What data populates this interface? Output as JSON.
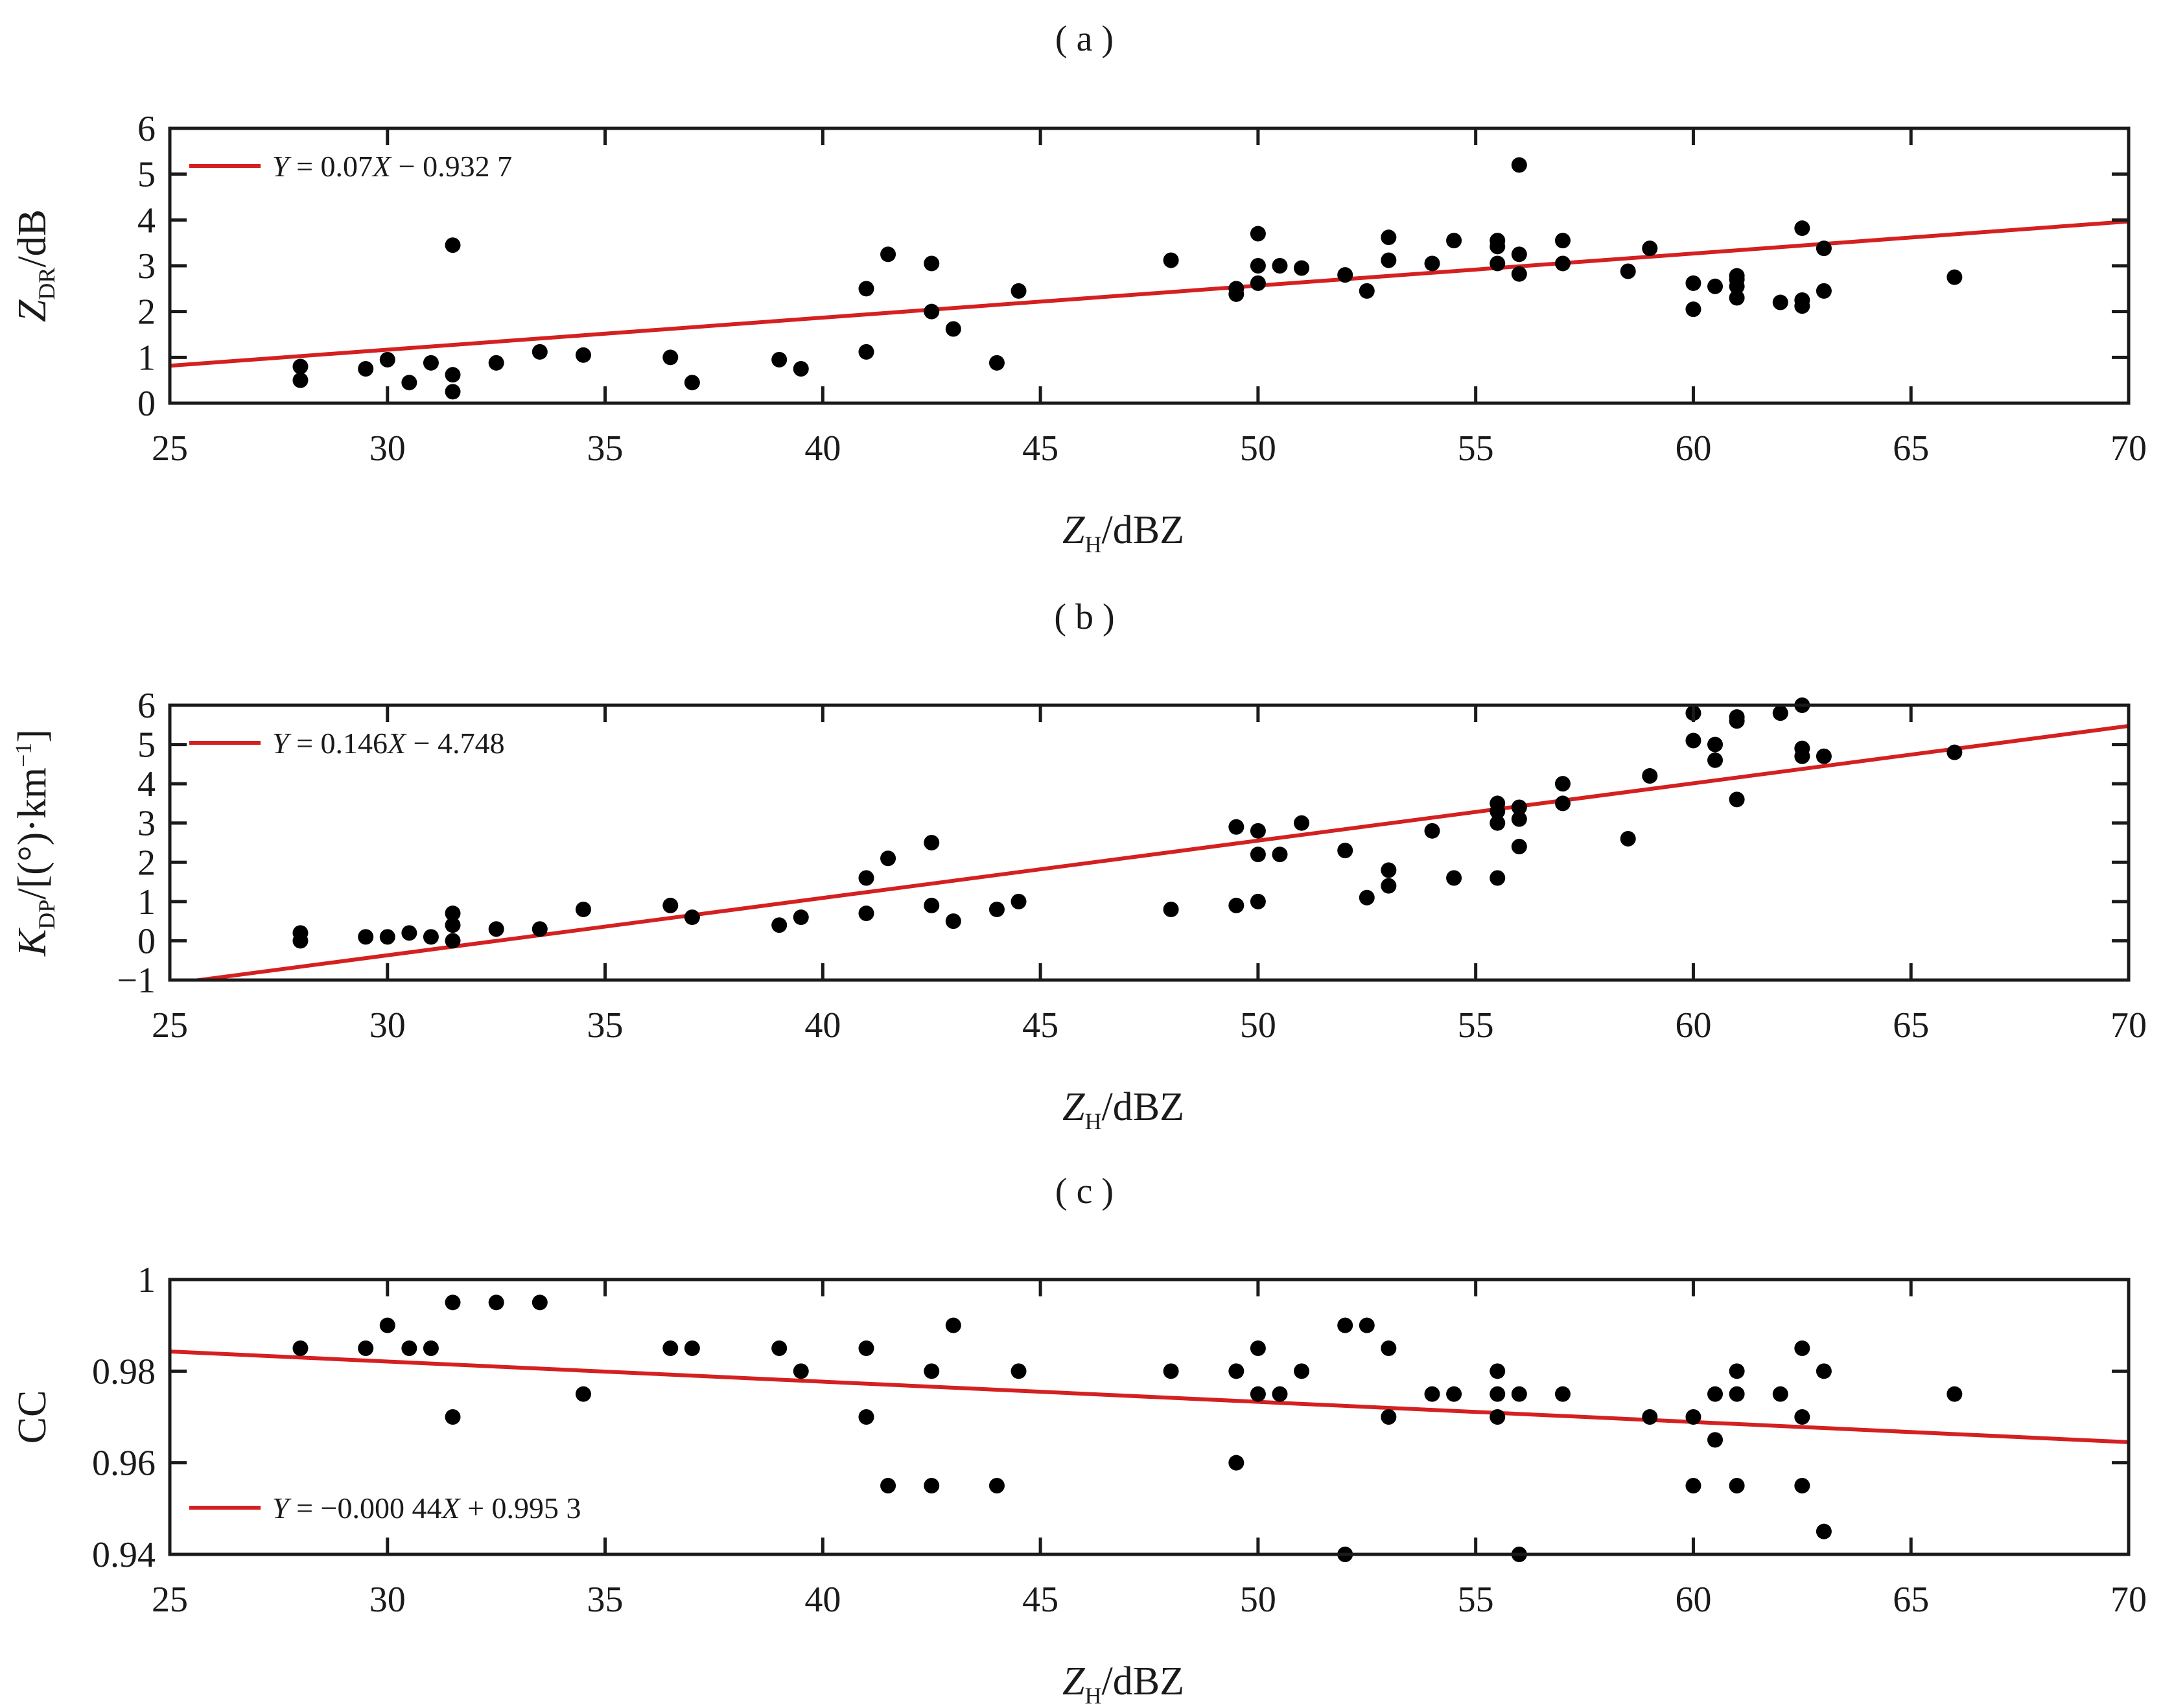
{
  "chart_data": [
    {
      "type": "scatter",
      "panel_label": "( a )",
      "xlabel": {
        "base": "Z",
        "sub": "H",
        "rest": "/dBZ"
      },
      "ylabel": {
        "base": "Z",
        "sub": "DR",
        "rest": "/dB"
      },
      "xlim": [
        25,
        70
      ],
      "ylim": [
        0,
        6
      ],
      "xticks": [
        25,
        30,
        35,
        40,
        45,
        50,
        55,
        60,
        65,
        70
      ],
      "yticks": [
        0,
        1,
        2,
        3,
        4,
        5,
        6
      ],
      "ytick_labels": [
        "0",
        "1",
        "2",
        "3",
        "4",
        "5",
        "6"
      ],
      "legend_position": "top-left",
      "fit": {
        "slope": 0.07,
        "intercept": -0.9327,
        "label_parts": [
          {
            "t": "Y",
            "i": true
          },
          {
            "t": " = 0.07"
          },
          {
            "t": "X",
            "i": true
          },
          {
            "t": " − 0.932 7"
          }
        ]
      },
      "points": [
        [
          28,
          0.5
        ],
        [
          28,
          0.8
        ],
        [
          29.5,
          0.75
        ],
        [
          30,
          0.95
        ],
        [
          30.5,
          0.45
        ],
        [
          31,
          0.88
        ],
        [
          31.5,
          0.25
        ],
        [
          31.5,
          0.62
        ],
        [
          31.5,
          3.45
        ],
        [
          32.5,
          0.88
        ],
        [
          33.5,
          1.12
        ],
        [
          34.5,
          1.05
        ],
        [
          36.5,
          1.0
        ],
        [
          37,
          0.45
        ],
        [
          39,
          0.95
        ],
        [
          39.5,
          0.75
        ],
        [
          41,
          1.12
        ],
        [
          41,
          2.5
        ],
        [
          41.5,
          3.25
        ],
        [
          42.5,
          2.0
        ],
        [
          42.5,
          3.05
        ],
        [
          43,
          1.62
        ],
        [
          44,
          0.88
        ],
        [
          44.5,
          2.45
        ],
        [
          48,
          3.12
        ],
        [
          49.5,
          2.38
        ],
        [
          49.5,
          2.5
        ],
        [
          50,
          2.62
        ],
        [
          50,
          3.0
        ],
        [
          50,
          3.7
        ],
        [
          50.5,
          3.0
        ],
        [
          51,
          2.95
        ],
        [
          52,
          2.8
        ],
        [
          52.5,
          2.45
        ],
        [
          53,
          3.12
        ],
        [
          53,
          3.62
        ],
        [
          54,
          3.05
        ],
        [
          54.5,
          3.55
        ],
        [
          55.5,
          3.05
        ],
        [
          55.5,
          3.42
        ],
        [
          55.5,
          3.55
        ],
        [
          56,
          2.82
        ],
        [
          56,
          3.25
        ],
        [
          56,
          5.2
        ],
        [
          57,
          3.05
        ],
        [
          57,
          3.55
        ],
        [
          58.5,
          2.88
        ],
        [
          59,
          3.38
        ],
        [
          60,
          2.05
        ],
        [
          60,
          2.62
        ],
        [
          60.5,
          2.55
        ],
        [
          61,
          2.3
        ],
        [
          61,
          2.55
        ],
        [
          61,
          2.7
        ],
        [
          61,
          2.78
        ],
        [
          62,
          2.2
        ],
        [
          62.5,
          2.12
        ],
        [
          62.5,
          2.25
        ],
        [
          62.5,
          3.82
        ],
        [
          63,
          2.45
        ],
        [
          63,
          3.38
        ],
        [
          66,
          2.75
        ]
      ]
    },
    {
      "type": "scatter",
      "panel_label": "( b )",
      "xlabel": {
        "base": "Z",
        "sub": "H",
        "rest": "/dBZ"
      },
      "ylabel": {
        "base": "K",
        "sub": "DP",
        "rest": "/[(°)·km",
        "sup": "−1",
        "tail": "]"
      },
      "xlim": [
        25,
        70
      ],
      "ylim": [
        -1,
        6
      ],
      "xticks": [
        25,
        30,
        35,
        40,
        45,
        50,
        55,
        60,
        65,
        70
      ],
      "yticks": [
        -1,
        0,
        1,
        2,
        3,
        4,
        5,
        6
      ],
      "ytick_labels": [
        "−1",
        "0",
        "1",
        "2",
        "3",
        "4",
        "5",
        "6"
      ],
      "legend_position": "top-left",
      "fit": {
        "slope": 0.146,
        "intercept": -4.748,
        "label_parts": [
          {
            "t": "Y",
            "i": true
          },
          {
            "t": " = 0.146"
          },
          {
            "t": "X",
            "i": true
          },
          {
            "t": " − 4.748"
          }
        ]
      },
      "points": [
        [
          28,
          0.0
        ],
        [
          28,
          0.2
        ],
        [
          29.5,
          0.1
        ],
        [
          30,
          0.1
        ],
        [
          30.5,
          0.2
        ],
        [
          31,
          0.1
        ],
        [
          31.5,
          0.0
        ],
        [
          31.5,
          0.4
        ],
        [
          31.5,
          0.7
        ],
        [
          32.5,
          0.3
        ],
        [
          33.5,
          0.3
        ],
        [
          34.5,
          0.8
        ],
        [
          36.5,
          0.9
        ],
        [
          37,
          0.6
        ],
        [
          39,
          0.4
        ],
        [
          39.5,
          0.6
        ],
        [
          41,
          0.7
        ],
        [
          41,
          1.6
        ],
        [
          41.5,
          2.1
        ],
        [
          42.5,
          0.9
        ],
        [
          42.5,
          2.5
        ],
        [
          43,
          0.5
        ],
        [
          44,
          0.8
        ],
        [
          44.5,
          1.0
        ],
        [
          48,
          0.8
        ],
        [
          49.5,
          0.9
        ],
        [
          49.5,
          2.9
        ],
        [
          50,
          1.0
        ],
        [
          50,
          2.2
        ],
        [
          50,
          2.8
        ],
        [
          50.5,
          2.2
        ],
        [
          51,
          3.0
        ],
        [
          52,
          2.3
        ],
        [
          52.5,
          1.1
        ],
        [
          53,
          1.4
        ],
        [
          53,
          1.8
        ],
        [
          54,
          2.8
        ],
        [
          54.5,
          1.6
        ],
        [
          55.5,
          1.6
        ],
        [
          55.5,
          3.0
        ],
        [
          55.5,
          3.3
        ],
        [
          55.5,
          3.5
        ],
        [
          56,
          2.4
        ],
        [
          56,
          3.1
        ],
        [
          56,
          3.4
        ],
        [
          57,
          3.5
        ],
        [
          57,
          4.0
        ],
        [
          58.5,
          2.6
        ],
        [
          59,
          4.2
        ],
        [
          60,
          5.1
        ],
        [
          60,
          5.8
        ],
        [
          60.5,
          4.6
        ],
        [
          60.5,
          5.0
        ],
        [
          61,
          3.6
        ],
        [
          61,
          5.6
        ],
        [
          61,
          5.7
        ],
        [
          62,
          5.8
        ],
        [
          62.5,
          4.7
        ],
        [
          62.5,
          4.9
        ],
        [
          62.5,
          6.0
        ],
        [
          63,
          4.7
        ],
        [
          66,
          4.8
        ]
      ]
    },
    {
      "type": "scatter",
      "panel_label": "( c )",
      "xlabel": {
        "base": "Z",
        "sub": "H",
        "rest": "/dBZ"
      },
      "ylabel": {
        "base": "CC",
        "sub": "",
        "rest": ""
      },
      "xlim": [
        25,
        70
      ],
      "ylim": [
        0.94,
        1.0
      ],
      "xticks": [
        25,
        30,
        35,
        40,
        45,
        50,
        55,
        60,
        65,
        70
      ],
      "yticks": [
        0.94,
        0.96,
        0.98,
        1.0
      ],
      "ytick_labels": [
        "0.94",
        "0.96",
        "0.98",
        "1"
      ],
      "legend_position": "bottom-left",
      "fit": {
        "slope": -0.00044,
        "intercept": 0.9953,
        "label_parts": [
          {
            "t": "Y",
            "i": true
          },
          {
            "t": " = −0.000 44"
          },
          {
            "t": "X",
            "i": true
          },
          {
            "t": " + 0.995 3"
          }
        ]
      },
      "points": [
        [
          28,
          0.985
        ],
        [
          29.5,
          0.985
        ],
        [
          30,
          0.99
        ],
        [
          30.5,
          0.985
        ],
        [
          31,
          0.985
        ],
        [
          31.5,
          0.97
        ],
        [
          31.5,
          0.995
        ],
        [
          32.5,
          0.995
        ],
        [
          33.5,
          0.995
        ],
        [
          34.5,
          0.975
        ],
        [
          36.5,
          0.985
        ],
        [
          37,
          0.985
        ],
        [
          39,
          0.985
        ],
        [
          39.5,
          0.98
        ],
        [
          41,
          0.97
        ],
        [
          41,
          0.985
        ],
        [
          41.5,
          0.955
        ],
        [
          42.5,
          0.955
        ],
        [
          42.5,
          0.98
        ],
        [
          43,
          0.99
        ],
        [
          44,
          0.955
        ],
        [
          44.5,
          0.98
        ],
        [
          48,
          0.98
        ],
        [
          49.5,
          0.96
        ],
        [
          49.5,
          0.98
        ],
        [
          50,
          0.975
        ],
        [
          50,
          0.985
        ],
        [
          50.5,
          0.975
        ],
        [
          51,
          0.98
        ],
        [
          52,
          0.94
        ],
        [
          52,
          0.99
        ],
        [
          52.5,
          0.99
        ],
        [
          53,
          0.97
        ],
        [
          53,
          0.985
        ],
        [
          54,
          0.975
        ],
        [
          54.5,
          0.975
        ],
        [
          55.5,
          0.97
        ],
        [
          55.5,
          0.975
        ],
        [
          55.5,
          0.98
        ],
        [
          56,
          0.94
        ],
        [
          56,
          0.975
        ],
        [
          57,
          0.975
        ],
        [
          59,
          0.97
        ],
        [
          60,
          0.955
        ],
        [
          60,
          0.97
        ],
        [
          60.5,
          0.965
        ],
        [
          60.5,
          0.975
        ],
        [
          61,
          0.955
        ],
        [
          61,
          0.975
        ],
        [
          61,
          0.98
        ],
        [
          62,
          0.975
        ],
        [
          62.5,
          0.955
        ],
        [
          62.5,
          0.97
        ],
        [
          62.5,
          0.985
        ],
        [
          63,
          0.945
        ],
        [
          63,
          0.98
        ],
        [
          66,
          0.975
        ]
      ]
    }
  ]
}
